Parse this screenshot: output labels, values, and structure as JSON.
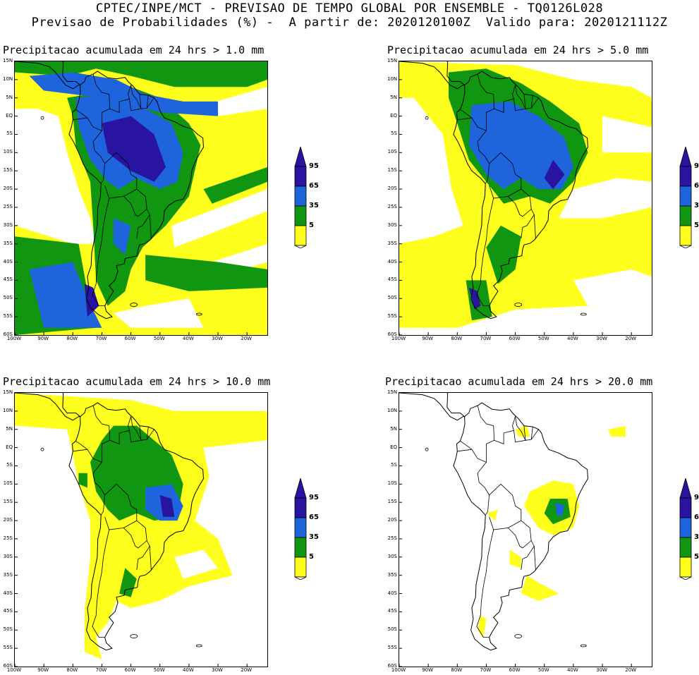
{
  "header": {
    "line1": "CPTEC/INPE/MCT - PREVISAO DE TEMPO GLOBAL POR ENSEMBLE - TQ0126L028",
    "line2": "Previsao de Probabilidades (%) -  A partir de: 2020120100Z  Valido para: 2020121112Z"
  },
  "colors": {
    "c5": "#ffff1e",
    "c35": "#119611",
    "c65": "#1e64dc",
    "c95": "#2814a0",
    "land_border": "#000000"
  },
  "legend": {
    "labels": [
      "95",
      "65",
      "35",
      "5"
    ]
  },
  "axes": {
    "lat_labels": [
      "15N",
      "10N",
      "5N",
      "EQ",
      "5S",
      "10S",
      "15S",
      "20S",
      "25S",
      "30S",
      "35S",
      "40S",
      "45S",
      "50S",
      "55S",
      "60S"
    ],
    "lon_labels": [
      "100W",
      "90W",
      "80W",
      "70W",
      "60W",
      "50W",
      "40W",
      "30W",
      "20W"
    ]
  },
  "panels": [
    {
      "title": "Precipitacao acumulada em 24 hrs > 1.0 mm",
      "threshold": "1.0 mm"
    },
    {
      "title": "Precipitacao acumulada em 24 hrs > 5.0 mm",
      "threshold": "5.0 mm"
    },
    {
      "title": "Precipitacao acumulada em 24 hrs > 10.0 mm",
      "threshold": "10.0 mm"
    },
    {
      "title": "Precipitacao acumulada em 24 hrs > 20.0 mm",
      "threshold": "20.0 mm"
    }
  ]
}
